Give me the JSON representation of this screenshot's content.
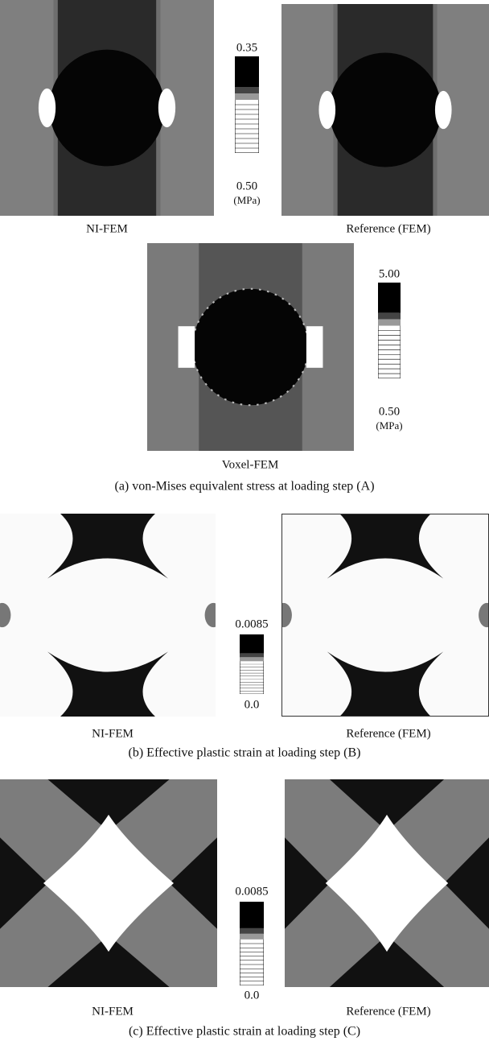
{
  "panel_a": {
    "left_label": "NI-FEM",
    "right_label": "Reference (FEM)",
    "scale_top": "0.35",
    "scale_bottom": "0.50",
    "scale_unit": "(MPa)",
    "voxel_label": "Voxel-FEM",
    "voxel_scale_top": "5.00",
    "voxel_scale_bottom": "0.50",
    "voxel_scale_unit": "(MPa)",
    "caption": "(a) von-Mises equivalent stress at loading step (A)"
  },
  "panel_b": {
    "left_label": "NI-FEM",
    "right_label": "Reference (FEM)",
    "scale_top": "0.0085",
    "scale_bottom": "0.0",
    "caption": "(b) Effective plastic strain at loading step (B)"
  },
  "panel_c": {
    "left_label": "NI-FEM",
    "right_label": "Reference (FEM)",
    "scale_top": "0.0085",
    "scale_bottom": "0.0",
    "caption": "(c) Effective plastic strain at loading step (C)"
  }
}
